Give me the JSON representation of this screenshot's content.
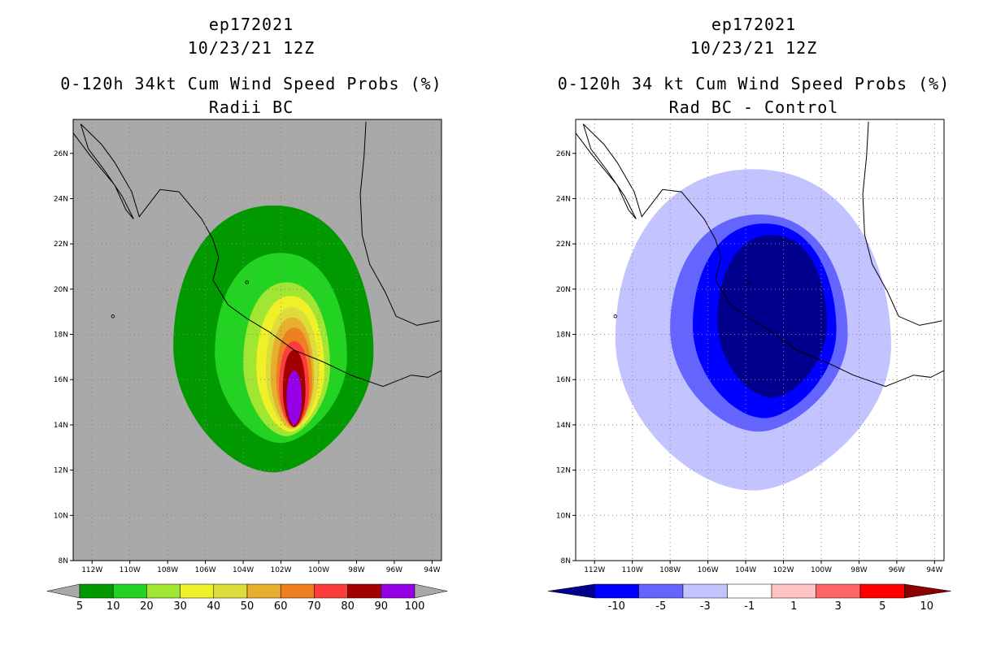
{
  "panels": [
    {
      "storm_id": "ep172021",
      "datetime": "10/23/21 12Z",
      "title": "0-120h 34kt Cum Wind Speed Probs (%)",
      "subtitle": "Radii BC"
    },
    {
      "storm_id": "ep172021",
      "datetime": "10/23/21 12Z",
      "title": "0-120h 34 kt Cum Wind Speed Probs (%)",
      "subtitle": "Rad BC - Control"
    }
  ],
  "chart_data": [
    {
      "type": "filled-contour-map",
      "title": "0-120h 34kt Cum Wind Speed Probs (%)",
      "subtitle": "Radii BC",
      "units": "%",
      "lon_range": [
        -113,
        -93.5
      ],
      "lat_range": [
        8,
        27.5
      ],
      "x_ticks": [
        "112W",
        "110W",
        "108W",
        "106W",
        "104W",
        "102W",
        "100W",
        "98W",
        "96W",
        "94W"
      ],
      "y_ticks": [
        "8N",
        "10N",
        "12N",
        "14N",
        "16N",
        "18N",
        "20N",
        "22N",
        "24N",
        "26N"
      ],
      "background_color": "#a9a9a9",
      "colorbar": {
        "labels": [
          "5",
          "10",
          "20",
          "30",
          "40",
          "50",
          "60",
          "70",
          "80",
          "90",
          "100"
        ],
        "colors": [
          "#009a00",
          "#22d322",
          "#a0e632",
          "#f0f028",
          "#dcdc3c",
          "#e6af2d",
          "#f07f20",
          "#fa3c3c",
          "#a00000",
          "#9600e6"
        ],
        "extend_color": "#a9a9a9"
      },
      "contours": [
        {
          "level": 5,
          "color": "#009a00",
          "center": [
            -102.4,
            17.8
          ],
          "rx_deg": 5.3,
          "ry_deg": 5.9,
          "shift_y": 0.0
        },
        {
          "level": 10,
          "color": "#22d322",
          "center": [
            -102.0,
            17.4
          ],
          "rx_deg": 3.5,
          "ry_deg": 4.2,
          "shift_y": 0.0
        },
        {
          "level": 20,
          "color": "#a0e632",
          "center": [
            -101.7,
            16.9
          ],
          "rx_deg": 2.3,
          "ry_deg": 3.4,
          "shift_y": 0.0
        },
        {
          "level": 30,
          "color": "#f0f028",
          "center": [
            -101.5,
            16.7
          ],
          "rx_deg": 1.8,
          "ry_deg": 3.0,
          "shift_y": 0.0
        },
        {
          "level": 40,
          "color": "#dcdc3c",
          "center": [
            -101.4,
            16.5
          ],
          "rx_deg": 1.4,
          "ry_deg": 2.7,
          "shift_y": 0.0
        },
        {
          "level": 50,
          "color": "#e6af2d",
          "center": [
            -101.4,
            16.3
          ],
          "rx_deg": 1.15,
          "ry_deg": 2.45,
          "shift_y": 0.0
        },
        {
          "level": 60,
          "color": "#f07f20",
          "center": [
            -101.3,
            16.1
          ],
          "rx_deg": 0.95,
          "ry_deg": 2.2,
          "shift_y": 0.0
        },
        {
          "level": 70,
          "color": "#fa3c3c",
          "center": [
            -101.3,
            15.8
          ],
          "rx_deg": 0.8,
          "ry_deg": 1.9,
          "shift_y": 0.0
        },
        {
          "level": 80,
          "color": "#a00000",
          "center": [
            -101.3,
            15.6
          ],
          "rx_deg": 0.6,
          "ry_deg": 1.7,
          "shift_y": 0.0
        },
        {
          "level": 90,
          "color": "#9600e6",
          "center": [
            -101.3,
            15.2
          ],
          "rx_deg": 0.4,
          "ry_deg": 1.2,
          "shift_y": 0.0
        }
      ]
    },
    {
      "type": "filled-contour-map",
      "title": "0-120h 34 kt Cum Wind Speed Probs (%)",
      "subtitle": "Rad BC - Control",
      "units": "%",
      "lon_range": [
        -113,
        -93.5
      ],
      "lat_range": [
        8,
        27.5
      ],
      "x_ticks": [
        "112W",
        "110W",
        "108W",
        "106W",
        "104W",
        "102W",
        "100W",
        "98W",
        "96W",
        "94W"
      ],
      "y_ticks": [
        "8N",
        "10N",
        "12N",
        "14N",
        "16N",
        "18N",
        "20N",
        "22N",
        "24N",
        "26N"
      ],
      "background_color": "#ffffff",
      "colorbar": {
        "labels": [
          "-10",
          "-5",
          "-3",
          "-1",
          "1",
          "3",
          "5",
          "10"
        ],
        "colors": [
          "#00008c",
          "#0000ff",
          "#6464ff",
          "#c3c3ff",
          "#ffffff",
          "#ffc3c3",
          "#ff6464",
          "#ff0000",
          "#8c0000"
        ]
      },
      "contours": [
        {
          "level": -1,
          "color": "#c3c3ff",
          "center": [
            -103.6,
            18.2
          ],
          "rx_deg": 7.3,
          "ry_deg": 7.1
        },
        {
          "level": -3,
          "color": "#6464ff",
          "center": [
            -103.3,
            18.5
          ],
          "rx_deg": 4.7,
          "ry_deg": 4.8
        },
        {
          "level": -5,
          "color": "#0000ff",
          "center": [
            -103.0,
            18.6
          ],
          "rx_deg": 3.8,
          "ry_deg": 4.3
        },
        {
          "level": -10,
          "color": "#00008c",
          "center": [
            -102.6,
            18.8
          ],
          "rx_deg": 2.9,
          "ry_deg": 3.6
        }
      ]
    }
  ]
}
